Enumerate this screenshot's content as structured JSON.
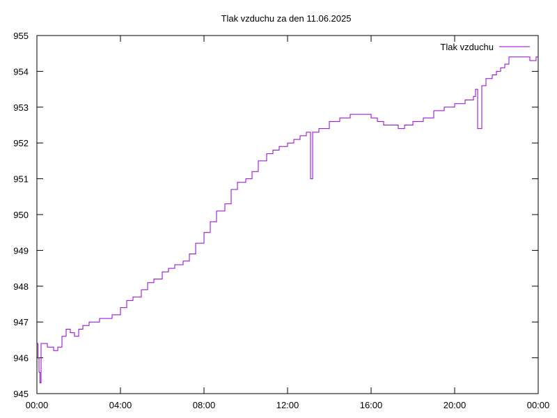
{
  "chart_data": {
    "type": "line",
    "title": "Tlak vzduchu za den 11.06.2025",
    "xlabel": "",
    "ylabel": "",
    "x_unit": "hours",
    "xlim": [
      0,
      24
    ],
    "ylim": [
      945,
      955
    ],
    "x_ticks": [
      {
        "value": 0,
        "label": "00:00"
      },
      {
        "value": 4,
        "label": "04:00"
      },
      {
        "value": 8,
        "label": "08:00"
      },
      {
        "value": 12,
        "label": "12:00"
      },
      {
        "value": 16,
        "label": "16:00"
      },
      {
        "value": 20,
        "label": "20:00"
      },
      {
        "value": 24,
        "label": "00:00"
      }
    ],
    "y_ticks": [
      945,
      946,
      947,
      948,
      949,
      950,
      951,
      952,
      953,
      954,
      955
    ],
    "grid": false,
    "legend_position": "top-right",
    "colors": {
      "series": "#9400d3",
      "axis": "#000000"
    },
    "series": [
      {
        "name": "Tlak vzduchu",
        "x": [
          0.0,
          0.05,
          0.1,
          0.15,
          0.2,
          0.3,
          0.5,
          0.8,
          1.0,
          1.2,
          1.4,
          1.6,
          1.8,
          2.0,
          2.2,
          2.5,
          2.8,
          3.0,
          3.3,
          3.6,
          4.0,
          4.3,
          4.6,
          5.0,
          5.3,
          5.6,
          6.0,
          6.3,
          6.6,
          7.0,
          7.3,
          7.6,
          8.0,
          8.3,
          8.6,
          9.0,
          9.3,
          9.6,
          10.0,
          10.3,
          10.6,
          11.0,
          11.3,
          11.6,
          12.0,
          12.3,
          12.6,
          12.9,
          13.0,
          13.1,
          13.2,
          13.5,
          14.0,
          14.5,
          15.0,
          15.5,
          15.8,
          16.0,
          16.3,
          16.6,
          17.0,
          17.3,
          17.6,
          18.0,
          18.5,
          19.0,
          19.5,
          20.0,
          20.5,
          20.9,
          21.0,
          21.1,
          21.3,
          21.5,
          21.8,
          22.0,
          22.2,
          22.4,
          22.6,
          22.8,
          23.0,
          23.2,
          23.4,
          23.6,
          23.8,
          23.9,
          24.0
        ],
        "values": [
          946.4,
          946.0,
          945.6,
          945.3,
          946.4,
          946.4,
          946.3,
          946.2,
          946.3,
          946.6,
          946.8,
          946.7,
          946.6,
          946.8,
          946.9,
          947.0,
          947.0,
          947.1,
          947.1,
          947.2,
          947.4,
          947.6,
          947.7,
          947.9,
          948.1,
          948.2,
          948.4,
          948.5,
          948.6,
          948.7,
          948.9,
          949.2,
          949.5,
          949.8,
          950.1,
          950.3,
          950.7,
          950.9,
          951.0,
          951.2,
          951.5,
          951.7,
          951.8,
          951.9,
          952.0,
          952.1,
          952.2,
          952.3,
          952.3,
          951.0,
          952.3,
          952.4,
          952.6,
          952.7,
          952.8,
          952.8,
          952.8,
          952.7,
          952.6,
          952.5,
          952.5,
          952.4,
          952.5,
          952.6,
          952.7,
          952.9,
          953.0,
          953.1,
          953.2,
          953.3,
          953.5,
          952.4,
          953.6,
          953.8,
          953.9,
          954.0,
          954.1,
          954.2,
          954.4,
          954.4,
          954.4,
          954.4,
          954.4,
          954.3,
          954.3,
          954.4,
          954.4
        ]
      }
    ]
  }
}
